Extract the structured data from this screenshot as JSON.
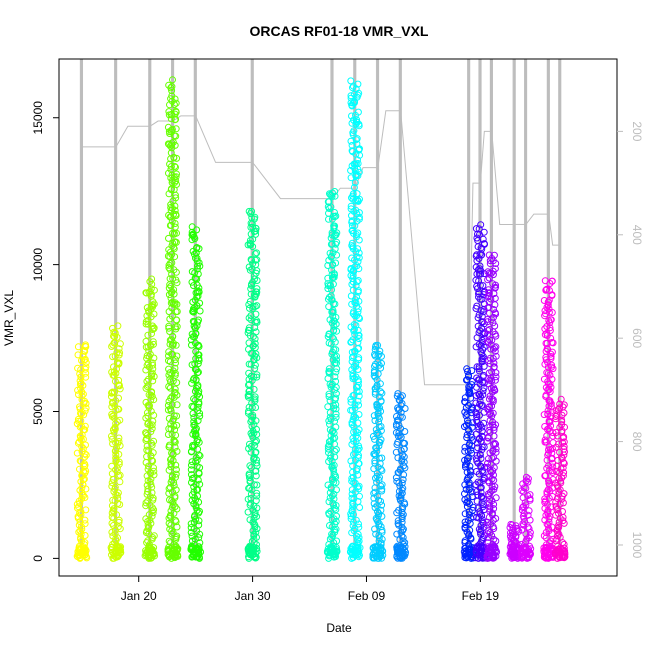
{
  "chart_data": {
    "type": "scatter",
    "title": "ORCAS RF01-18 VMR_VXL",
    "xlabel": "Date",
    "ylabel": "VMR_VXL",
    "x_axis": {
      "range": [
        "2016-01-13",
        "2016-03-02"
      ],
      "ticks": [
        {
          "date": "2016-01-20",
          "label": "Jan 20"
        },
        {
          "date": "2016-01-30",
          "label": "Jan 30"
        },
        {
          "date": "2016-02-09",
          "label": "Feb 09"
        },
        {
          "date": "2016-02-19",
          "label": "Feb 19"
        }
      ]
    },
    "y_axis": {
      "range": [
        -600,
        17000
      ],
      "ticks": [
        0,
        5000,
        10000,
        15000
      ]
    },
    "y2_axis": {
      "label": "",
      "reversed": true,
      "range": [
        1060,
        60
      ],
      "ticks": [
        200,
        400,
        600,
        800,
        1000
      ],
      "color": "#bdbdbd"
    },
    "grid": false,
    "legend": "none",
    "series": [
      {
        "date": "2016-01-15",
        "y_max": 7500,
        "pressure_top": 230,
        "color": "#ffff00"
      },
      {
        "date": "2016-01-18",
        "y_max": 8050,
        "pressure_top": 230,
        "color": "#ccff00"
      },
      {
        "date": "2016-01-21",
        "y_max": 9650,
        "pressure_top": 190,
        "color": "#99ff00"
      },
      {
        "date": "2016-01-23",
        "y_max": 16400,
        "pressure_top": 180,
        "color": "#66ff00"
      },
      {
        "date": "2016-01-25",
        "y_max": 11500,
        "pressure_top": 170,
        "color": "#22ff00"
      },
      {
        "date": "2016-01-30",
        "y_max": 12000,
        "pressure_top": 260,
        "color": "#00ff88"
      },
      {
        "date": "2016-02-06",
        "y_max": 12800,
        "pressure_top": 330,
        "color": "#00ffcc"
      },
      {
        "date": "2016-02-08",
        "y_max": 16500,
        "pressure_top": 310,
        "color": "#00ffff"
      },
      {
        "date": "2016-02-10",
        "y_max": 7500,
        "pressure_top": 270,
        "color": "#00ccff"
      },
      {
        "date": "2016-02-12",
        "y_max": 5800,
        "pressure_top": 160,
        "color": "#0088ff"
      },
      {
        "date": "2016-02-18",
        "y_max": 6600,
        "pressure_top": 690,
        "color": "#0022ff"
      },
      {
        "date": "2016-02-19",
        "y_max": 11500,
        "pressure_top": 300,
        "color": "#4400ff"
      },
      {
        "date": "2016-02-20",
        "y_max": 10500,
        "pressure_top": 200,
        "color": "#9900ff"
      },
      {
        "date": "2016-02-22",
        "y_max": 1200,
        "pressure_top": 380,
        "color": "#cc00ff"
      },
      {
        "date": "2016-02-23",
        "y_max": 2900,
        "pressure_top": 380,
        "color": "#dd00ff"
      },
      {
        "date": "2016-02-25",
        "y_max": 9700,
        "pressure_top": 360,
        "color": "#ff00ee"
      },
      {
        "date": "2016-02-26",
        "y_max": 5500,
        "pressure_top": 420,
        "color": "#ff00cc"
      }
    ],
    "track_color": "#bdbdbd"
  }
}
